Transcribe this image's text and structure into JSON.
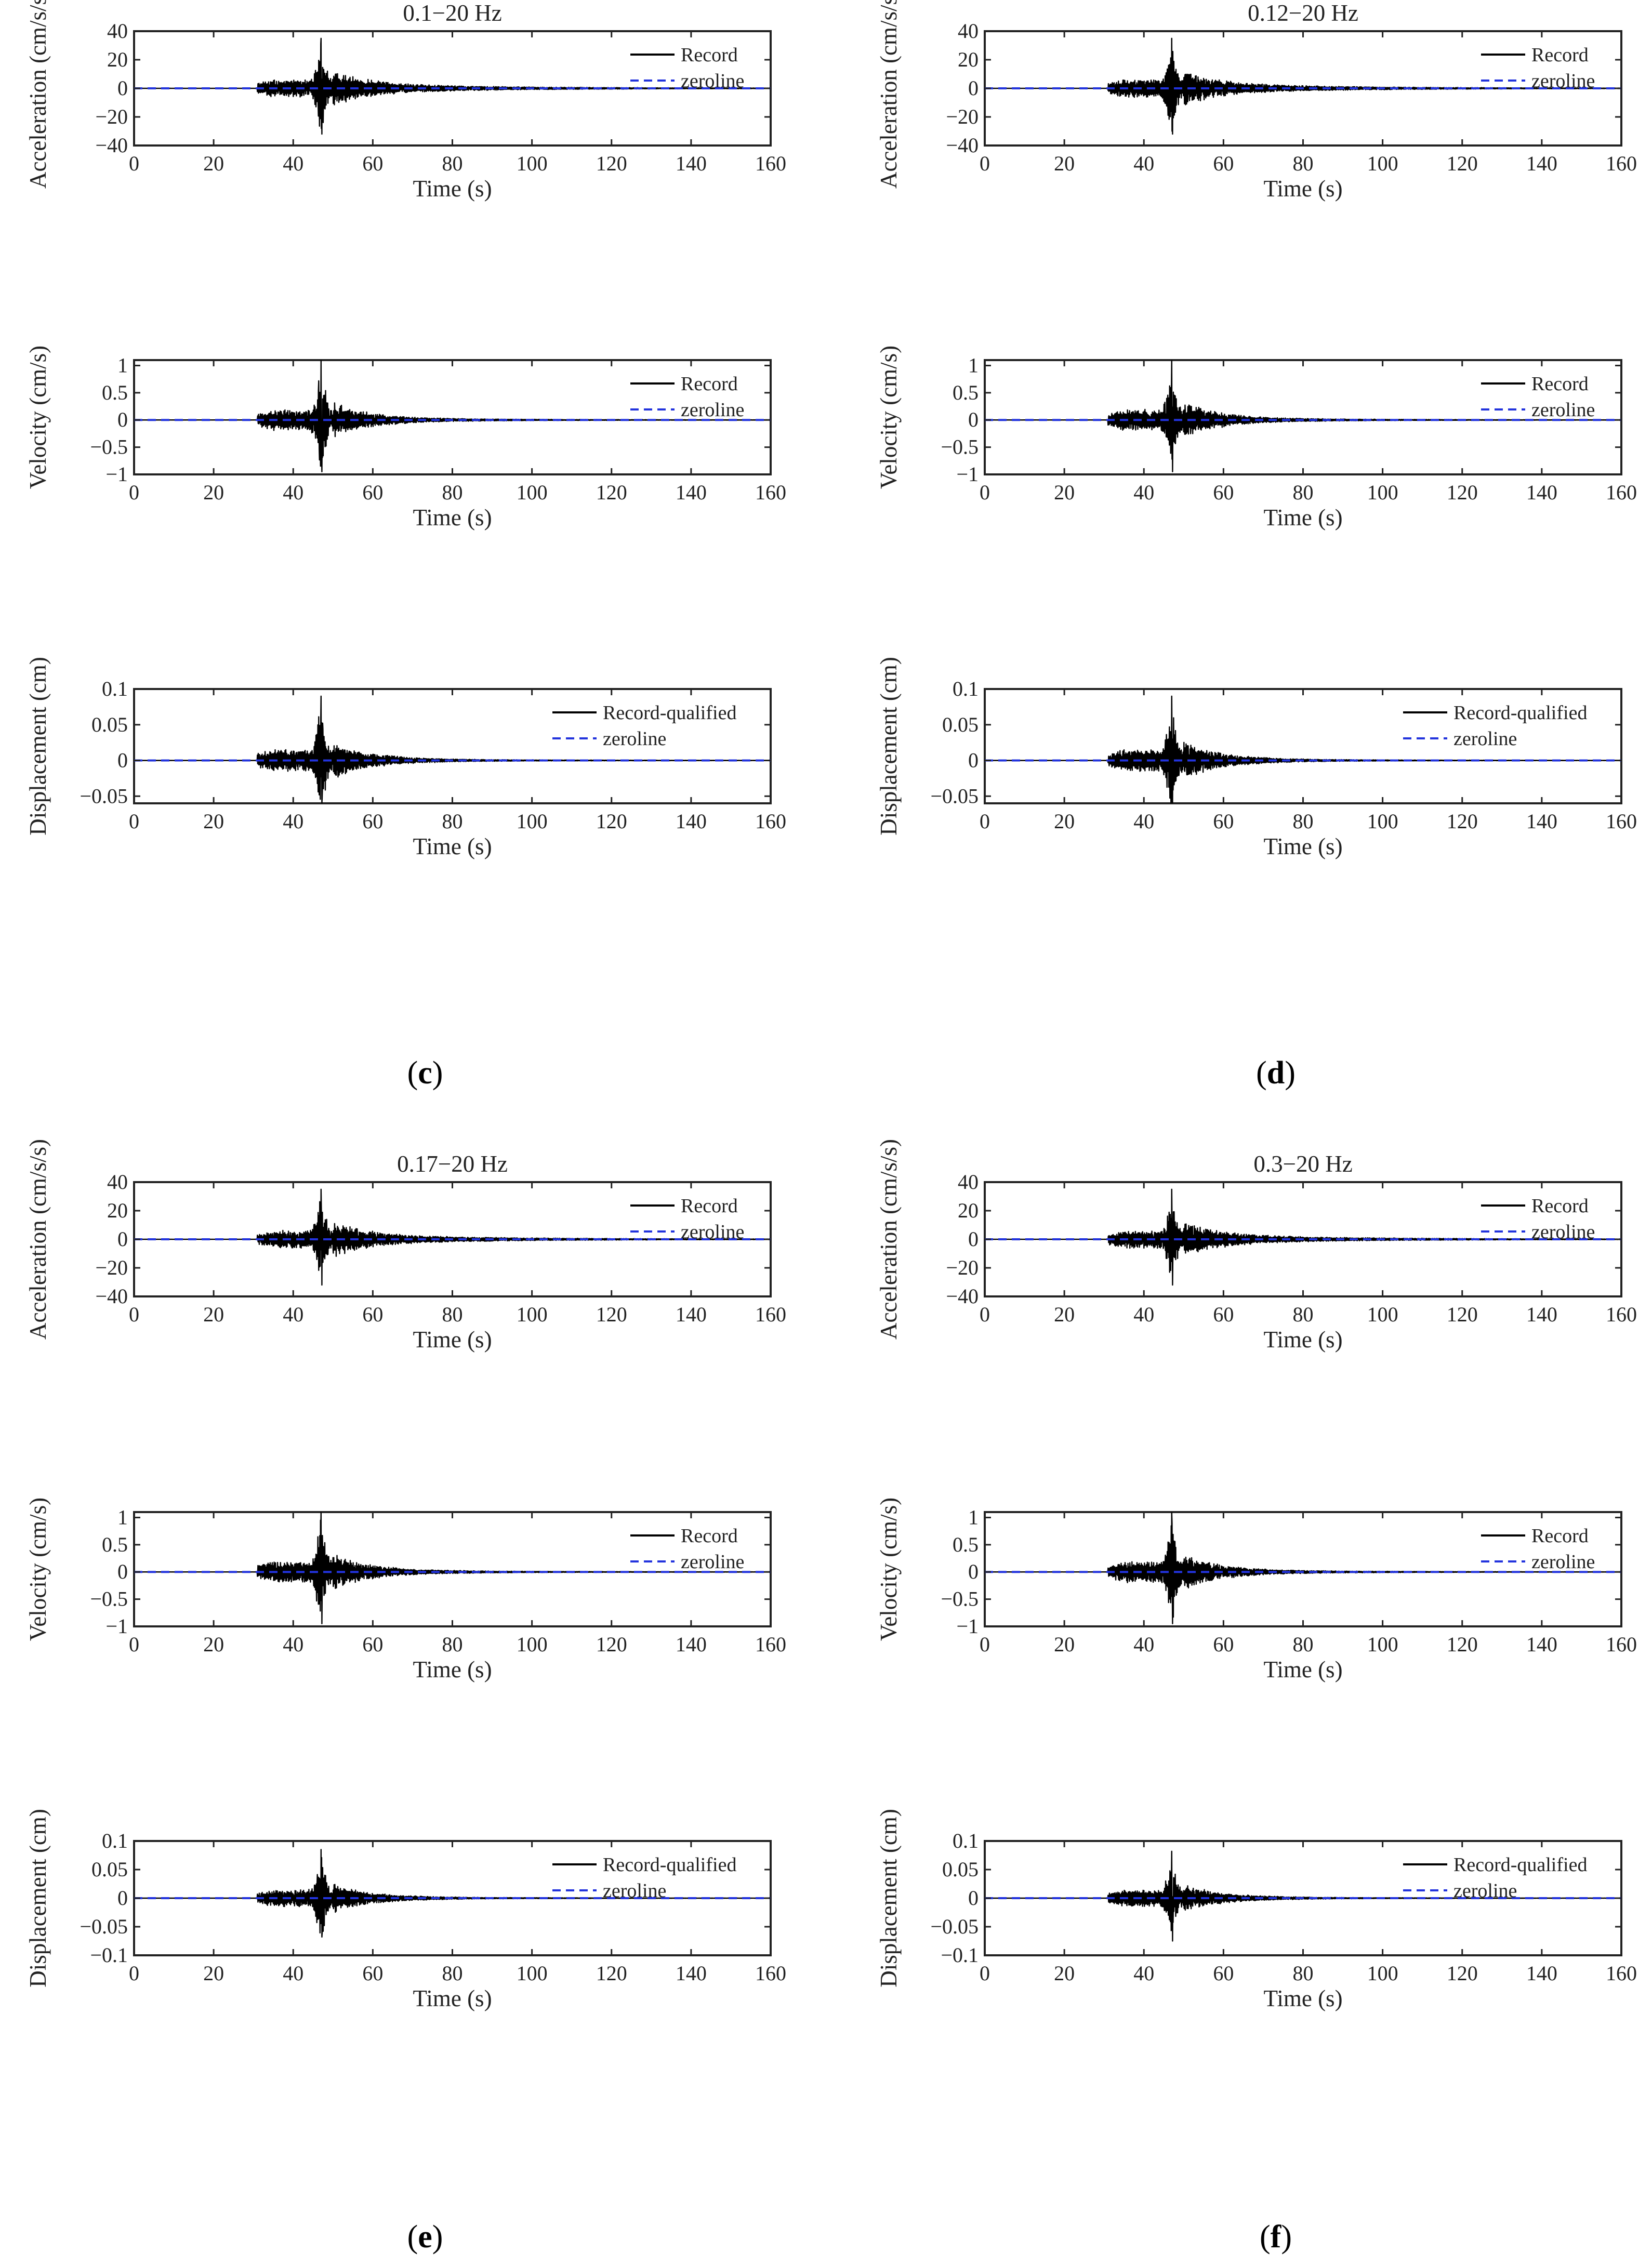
{
  "figure": {
    "panel_labels": [
      {
        "open": "(",
        "letter": "c",
        "close": ")"
      },
      {
        "open": "(",
        "letter": "d",
        "close": ")"
      },
      {
        "open": "(",
        "letter": "e",
        "close": ")"
      },
      {
        "open": "(",
        "letter": "f",
        "close": ")"
      }
    ],
    "colors": {
      "record": "#000000",
      "zeroline": "#2233dd",
      "axes": "#222222"
    }
  },
  "chart_data": [
    {
      "type": "line",
      "title": "0.1−20 Hz",
      "xlabel": "Time (s)",
      "ylabel": "Acceleration (cm/s/s)",
      "xlim": [
        0,
        160
      ],
      "ylim": [
        -40,
        40
      ],
      "xticks": [
        "0",
        "20",
        "40",
        "60",
        "80",
        "100",
        "120",
        "140",
        "160"
      ],
      "yticks": [
        "−40",
        "−20",
        "0",
        "20",
        "40"
      ],
      "legend": [
        "Record",
        "zeroline"
      ],
      "onset": 31,
      "peak_time": 47,
      "peak_pos": 35,
      "peak_neg": -32,
      "coda": 2.5,
      "series": [
        {
          "name": "Record"
        },
        {
          "name": "zeroline",
          "value": 0
        }
      ]
    },
    {
      "type": "line",
      "title": "0.12−20 Hz",
      "xlabel": "Time (s)",
      "ylabel": "Acceleration (cm/s/s)",
      "xlim": [
        0,
        160
      ],
      "ylim": [
        -40,
        40
      ],
      "xticks": [
        "0",
        "20",
        "40",
        "60",
        "80",
        "100",
        "120",
        "140",
        "160"
      ],
      "yticks": [
        "−40",
        "−20",
        "0",
        "20",
        "40"
      ],
      "legend": [
        "Record",
        "zeroline"
      ],
      "onset": 31,
      "peak_time": 47,
      "peak_pos": 35,
      "peak_neg": -32,
      "coda": 2.5,
      "series": [
        {
          "name": "Record"
        },
        {
          "name": "zeroline",
          "value": 0
        }
      ]
    },
    {
      "type": "line",
      "title": "",
      "xlabel": "Time (s)",
      "ylabel": "Velocity (cm/s)",
      "xlim": [
        0,
        160
      ],
      "ylim": [
        -1,
        1.1
      ],
      "xticks": [
        "0",
        "20",
        "40",
        "60",
        "80",
        "100",
        "120",
        "140",
        "160"
      ],
      "yticks": [
        "−1",
        "−0.5",
        "0",
        "0.5",
        "1"
      ],
      "legend": [
        "Record",
        "zeroline"
      ],
      "onset": 31,
      "peak_time": 47,
      "peak_pos": 1.1,
      "peak_neg": -0.95,
      "coda": 0.03,
      "series": [
        {
          "name": "Record"
        },
        {
          "name": "zeroline",
          "value": 0
        }
      ]
    },
    {
      "type": "line",
      "title": "",
      "xlabel": "Time (s)",
      "ylabel": "Velocity (cm/s)",
      "xlim": [
        0,
        160
      ],
      "ylim": [
        -1,
        1.1
      ],
      "xticks": [
        "0",
        "20",
        "40",
        "60",
        "80",
        "100",
        "120",
        "140",
        "160"
      ],
      "yticks": [
        "−1",
        "−0.5",
        "0",
        "0.5",
        "1"
      ],
      "legend": [
        "Record",
        "zeroline"
      ],
      "onset": 31,
      "peak_time": 47,
      "peak_pos": 1.1,
      "peak_neg": -0.95,
      "coda": 0.03,
      "series": [
        {
          "name": "Record"
        },
        {
          "name": "zeroline",
          "value": 0
        }
      ]
    },
    {
      "type": "line",
      "title": "",
      "xlabel": "Time (s)",
      "ylabel": "Displacement (cm)",
      "xlim": [
        0,
        160
      ],
      "ylim": [
        -0.06,
        0.1
      ],
      "xticks": [
        "0",
        "20",
        "40",
        "60",
        "80",
        "100",
        "120",
        "140",
        "160"
      ],
      "yticks": [
        "−0.05",
        "0",
        "0.05",
        "0.1"
      ],
      "legend": [
        "Record-qualified",
        "zeroline"
      ],
      "onset": 31,
      "peak_time": 47,
      "peak_pos": 0.09,
      "peak_neg": -0.06,
      "coda": 0.002,
      "series": [
        {
          "name": "Record-qualified"
        },
        {
          "name": "zeroline",
          "value": 0
        }
      ]
    },
    {
      "type": "line",
      "title": "",
      "xlabel": "Time (s)",
      "ylabel": "Displacement (cm)",
      "xlim": [
        0,
        160
      ],
      "ylim": [
        -0.06,
        0.1
      ],
      "xticks": [
        "0",
        "20",
        "40",
        "60",
        "80",
        "100",
        "120",
        "140",
        "160"
      ],
      "yticks": [
        "−0.05",
        "0",
        "0.05",
        "0.1"
      ],
      "legend": [
        "Record-qualified",
        "zeroline"
      ],
      "onset": 31,
      "peak_time": 47,
      "peak_pos": 0.09,
      "peak_neg": -0.06,
      "coda": 0.002,
      "series": [
        {
          "name": "Record-qualified"
        },
        {
          "name": "zeroline",
          "value": 0
        }
      ]
    },
    {
      "type": "line",
      "title": "0.17−20 Hz",
      "xlabel": "Time (s)",
      "ylabel": "Acceleration (cm/s/s)",
      "xlim": [
        0,
        160
      ],
      "ylim": [
        -40,
        40
      ],
      "xticks": [
        "0",
        "20",
        "40",
        "60",
        "80",
        "100",
        "120",
        "140",
        "160"
      ],
      "yticks": [
        "−40",
        "−20",
        "0",
        "20",
        "40"
      ],
      "legend": [
        "Record",
        "zeroline"
      ],
      "onset": 31,
      "peak_time": 47,
      "peak_pos": 35,
      "peak_neg": -32,
      "coda": 2.5,
      "series": [
        {
          "name": "Record"
        },
        {
          "name": "zeroline",
          "value": 0
        }
      ]
    },
    {
      "type": "line",
      "title": "0.3−20 Hz",
      "xlabel": "Time (s)",
      "ylabel": "Acceleration (cm/s/s)",
      "xlim": [
        0,
        160
      ],
      "ylim": [
        -40,
        40
      ],
      "xticks": [
        "0",
        "20",
        "40",
        "60",
        "80",
        "100",
        "120",
        "140",
        "160"
      ],
      "yticks": [
        "−40",
        "−20",
        "0",
        "20",
        "40"
      ],
      "legend": [
        "Record",
        "zeroline"
      ],
      "onset": 31,
      "peak_time": 47,
      "peak_pos": 35,
      "peak_neg": -32,
      "coda": 2.5,
      "series": [
        {
          "name": "Record"
        },
        {
          "name": "zeroline",
          "value": 0
        }
      ]
    },
    {
      "type": "line",
      "title": "",
      "xlabel": "Time (s)",
      "ylabel": "Velocity (cm/s)",
      "xlim": [
        0,
        160
      ],
      "ylim": [
        -1,
        1.1
      ],
      "xticks": [
        "0",
        "20",
        "40",
        "60",
        "80",
        "100",
        "120",
        "140",
        "160"
      ],
      "yticks": [
        "−1",
        "−0.5",
        "0",
        "0.5",
        "1"
      ],
      "legend": [
        "Record",
        "zeroline"
      ],
      "onset": 31,
      "peak_time": 47,
      "peak_pos": 1.1,
      "peak_neg": -0.95,
      "coda": 0.03,
      "series": [
        {
          "name": "Record"
        },
        {
          "name": "zeroline",
          "value": 0
        }
      ]
    },
    {
      "type": "line",
      "title": "",
      "xlabel": "Time (s)",
      "ylabel": "Velocity (cm/s)",
      "xlim": [
        0,
        160
      ],
      "ylim": [
        -1,
        1.1
      ],
      "xticks": [
        "0",
        "20",
        "40",
        "60",
        "80",
        "100",
        "120",
        "140",
        "160"
      ],
      "yticks": [
        "−1",
        "−0.5",
        "0",
        "0.5",
        "1"
      ],
      "legend": [
        "Record",
        "zeroline"
      ],
      "onset": 31,
      "peak_time": 47,
      "peak_pos": 1.1,
      "peak_neg": -0.95,
      "coda": 0.03,
      "series": [
        {
          "name": "Record"
        },
        {
          "name": "zeroline",
          "value": 0
        }
      ]
    },
    {
      "type": "line",
      "title": "",
      "xlabel": "Time (s)",
      "ylabel": "Displacement (cm)",
      "xlim": [
        0,
        160
      ],
      "ylim": [
        -0.1,
        0.1
      ],
      "xticks": [
        "0",
        "20",
        "40",
        "60",
        "80",
        "100",
        "120",
        "140",
        "160"
      ],
      "yticks": [
        "−0.1",
        "−0.05",
        "0",
        "0.05",
        "0.1"
      ],
      "legend": [
        "Record-qualified",
        "zeroline"
      ],
      "onset": 31,
      "peak_time": 47,
      "peak_pos": 0.085,
      "peak_neg": -0.068,
      "coda": 0.002,
      "series": [
        {
          "name": "Record-qualified"
        },
        {
          "name": "zeroline",
          "value": 0
        }
      ]
    },
    {
      "type": "line",
      "title": "",
      "xlabel": "Time (s)",
      "ylabel": "Displacement (cm)",
      "xlim": [
        0,
        160
      ],
      "ylim": [
        -0.1,
        0.1
      ],
      "xticks": [
        "0",
        "20",
        "40",
        "60",
        "80",
        "100",
        "120",
        "140",
        "160"
      ],
      "yticks": [
        "−0.1",
        "−0.05",
        "0",
        "0.05",
        "0.1"
      ],
      "legend": [
        "Record-qualified",
        "zeroline"
      ],
      "onset": 31,
      "peak_time": 47,
      "peak_pos": 0.082,
      "peak_neg": -0.075,
      "coda": 0.002,
      "series": [
        {
          "name": "Record-qualified"
        },
        {
          "name": "zeroline",
          "value": 0
        }
      ]
    }
  ]
}
